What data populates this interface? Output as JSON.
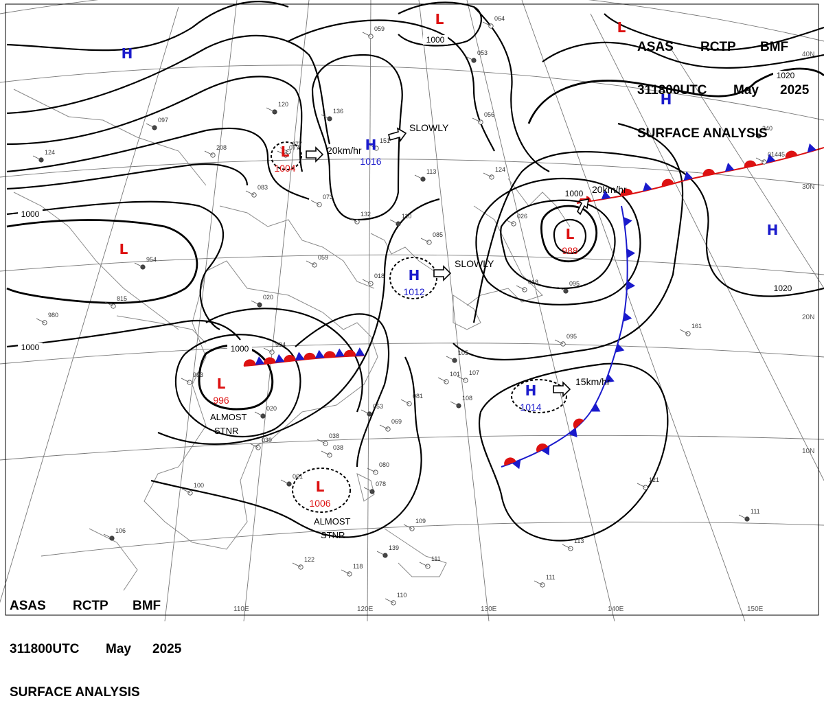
{
  "header_top": {
    "line1": [
      "ASAS",
      "RCTP",
      "BMF"
    ],
    "line2": [
      "311800UTC",
      "May",
      "2025"
    ],
    "line3": "SURFACE ANALYSIS"
  },
  "header_bottom": {
    "line1": [
      "ASAS",
      "RCTP",
      "BMF"
    ],
    "line2": [
      "311800UTC",
      "May",
      "2025"
    ],
    "line3": "SURFACE ANALYSIS"
  },
  "colors": {
    "high": "#1a1acc",
    "low": "#dd1111",
    "isobar": "#000000",
    "grid": "#777777",
    "coast": "#8a8a8a"
  },
  "longitude_labels": [
    "110E",
    "120E",
    "130E",
    "140E",
    "150E"
  ],
  "latitude_labels": [
    "10N",
    "20N",
    "30N",
    "40N"
  ],
  "pressure_centers": [
    {
      "type": "H",
      "value": "",
      "note": ""
    },
    {
      "type": "L",
      "value": "",
      "note": ""
    },
    {
      "type": "L",
      "value": "",
      "note": ""
    },
    {
      "type": "H",
      "value": "",
      "note": ""
    },
    {
      "type": "L",
      "value": "1004",
      "note": ""
    },
    {
      "type": "H",
      "value": "1016",
      "note": ""
    },
    {
      "type": "L",
      "value": "",
      "note": ""
    },
    {
      "type": "H",
      "value": "1012",
      "note": ""
    },
    {
      "type": "L",
      "value": "988",
      "note": ""
    },
    {
      "type": "H",
      "value": "",
      "note": ""
    },
    {
      "type": "L",
      "value": "996",
      "note": "ALMOST STNR"
    },
    {
      "type": "H",
      "value": "1014",
      "note": ""
    },
    {
      "type": "L",
      "value": "1006",
      "note": "ALMOST STNR"
    }
  ],
  "notes": [
    "ALMOST",
    "STNR",
    "ALMOST",
    "STNR"
  ],
  "movements": [
    "20km/hr",
    "SLOWLY",
    "SLOWLY",
    "20km/hr",
    "15km/hr"
  ],
  "isobar_labels": [
    "1000",
    "1000",
    "1000",
    "1000",
    "1000",
    "1020",
    "1020"
  ],
  "station_values": [
    "097",
    "077",
    "208",
    "124",
    "083",
    "073",
    "954",
    "815",
    "980",
    "020",
    "994",
    "993",
    "020",
    "039",
    "100",
    "106",
    "122",
    "118",
    "139",
    "111",
    "110",
    "061",
    "038",
    "080",
    "078",
    "109",
    "069",
    "053",
    "081",
    "059",
    "105",
    "101",
    "107",
    "108",
    "095",
    "018",
    "095",
    "161",
    "121",
    "111",
    "113",
    "111",
    "240",
    "01445",
    "056",
    "053",
    "064",
    "059",
    "136",
    "151",
    "132",
    "110",
    "085",
    "018",
    "113",
    "124",
    "026",
    "120",
    "077",
    "038"
  ]
}
